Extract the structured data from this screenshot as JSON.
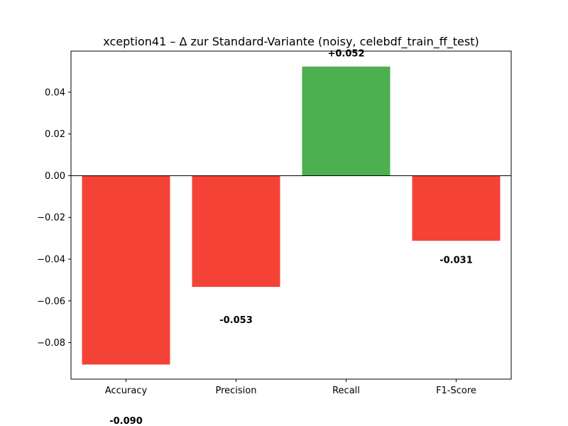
{
  "chart_data": {
    "type": "bar",
    "title": "xception41 – Δ zur Standard-Variante (noisy, celebdf_train_ff_test)",
    "xlabel": "",
    "ylabel": "",
    "categories": [
      "Accuracy",
      "Precision",
      "Recall",
      "F1-Score"
    ],
    "values": [
      -0.0905,
      -0.0533,
      0.0523,
      -0.0312
    ],
    "value_labels": [
      "-0.090",
      "-0.053",
      "+0.052",
      "-0.031"
    ],
    "ylim": [
      -0.0975,
      0.0597
    ],
    "yticks": [
      -0.08,
      -0.06,
      -0.04,
      -0.02,
      0.0,
      0.02,
      0.04
    ],
    "ytick_labels": [
      "−0.08",
      "−0.06",
      "−0.04",
      "−0.02",
      "0.00",
      "0.02",
      "0.04"
    ],
    "colors": {
      "positive": "#4caf50",
      "negative": "#f44336",
      "zero_line": "#000000"
    },
    "grid": false,
    "legend": false
  }
}
